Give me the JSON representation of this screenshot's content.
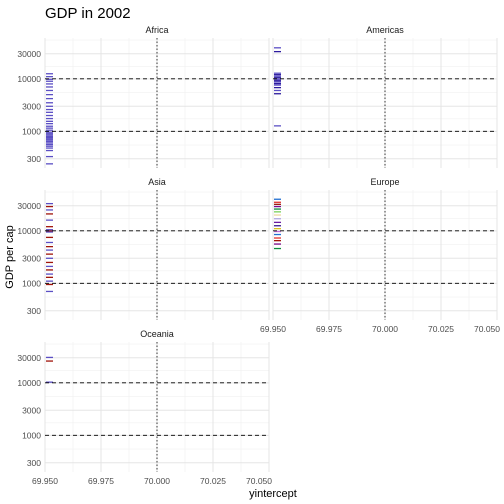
{
  "chart_data": {
    "type": "scatter",
    "title": "GDP in 2002",
    "xlabel": "yintercept",
    "ylabel": "GDP per cap",
    "xlim": [
      69.95,
      70.05
    ],
    "ylim": [
      200,
      60000
    ],
    "y_scale": "log10",
    "grid": true,
    "x_ticks": [
      69.95,
      69.975,
      70.0,
      70.025,
      70.05
    ],
    "x_tick_labels": [
      "69.950",
      "69.975",
      "70.000",
      "70.025",
      "70.050"
    ],
    "y_ticks": [
      300,
      1000,
      3000,
      10000,
      30000
    ],
    "y_tick_labels": [
      "300",
      "1000",
      "3000",
      "10000",
      "30000"
    ],
    "reference_lines": {
      "horizontal_dashed": [
        1000,
        10000
      ],
      "vertical_dotted": [
        70.0
      ]
    },
    "facets": [
      {
        "name": "Africa",
        "x": 69.95,
        "colors": [
          "#5b4fc4"
        ],
        "gdp_values": [
          240,
          330,
          430,
          480,
          520,
          560,
          600,
          640,
          680,
          720,
          760,
          800,
          850,
          900,
          960,
          1050,
          1150,
          1250,
          1400,
          1550,
          1750,
          2000,
          2300,
          2600,
          3000,
          3500,
          4200,
          5000,
          6000,
          7000,
          8000,
          9000,
          9800,
          11000,
          12500
        ]
      },
      {
        "name": "Americas",
        "x": 69.95,
        "colors": [
          "#5b4fc4",
          "#2c1a9e"
        ],
        "gdp_values": [
          1270,
          5200,
          6000,
          6800,
          7600,
          8100,
          8700,
          9200,
          9800,
          10500,
          11200,
          12000,
          12800,
          33000,
          39000
        ]
      },
      {
        "name": "Asia",
        "x": 69.95,
        "colors": [
          "#5b4fc4",
          "#a0140a"
        ],
        "gdp_values": [
          700,
          950,
          1100,
          1300,
          1500,
          1800,
          2100,
          2500,
          3000,
          3600,
          4300,
          5000,
          6000,
          7500,
          9500,
          10000,
          10500,
          12000,
          16000,
          21000,
          25000,
          29000,
          33000
        ]
      },
      {
        "name": "Europe",
        "x": 69.95,
        "colors": [
          "#0c8a3c",
          "#7a0a8c",
          "#a0140a",
          "#e0322c",
          "#1f6fd1",
          "#c56ad8",
          "#d9c21a",
          "#3a1a8c",
          "#6a1aa0",
          "#b0a8e0",
          "#ecd8a0",
          "#7ad05a"
        ],
        "gdp_values": [
          4600,
          5600,
          6500,
          7300,
          8500,
          9700,
          11000,
          12500,
          14500,
          17000,
          20000,
          23000,
          26000,
          29000,
          32000,
          35000,
          40000
        ]
      },
      {
        "name": "Oceania",
        "x": 69.95,
        "colors": [
          "#5b4fc4",
          "#a0140a"
        ],
        "gdp_values": [
          10300,
          26000,
          30500
        ]
      }
    ]
  }
}
